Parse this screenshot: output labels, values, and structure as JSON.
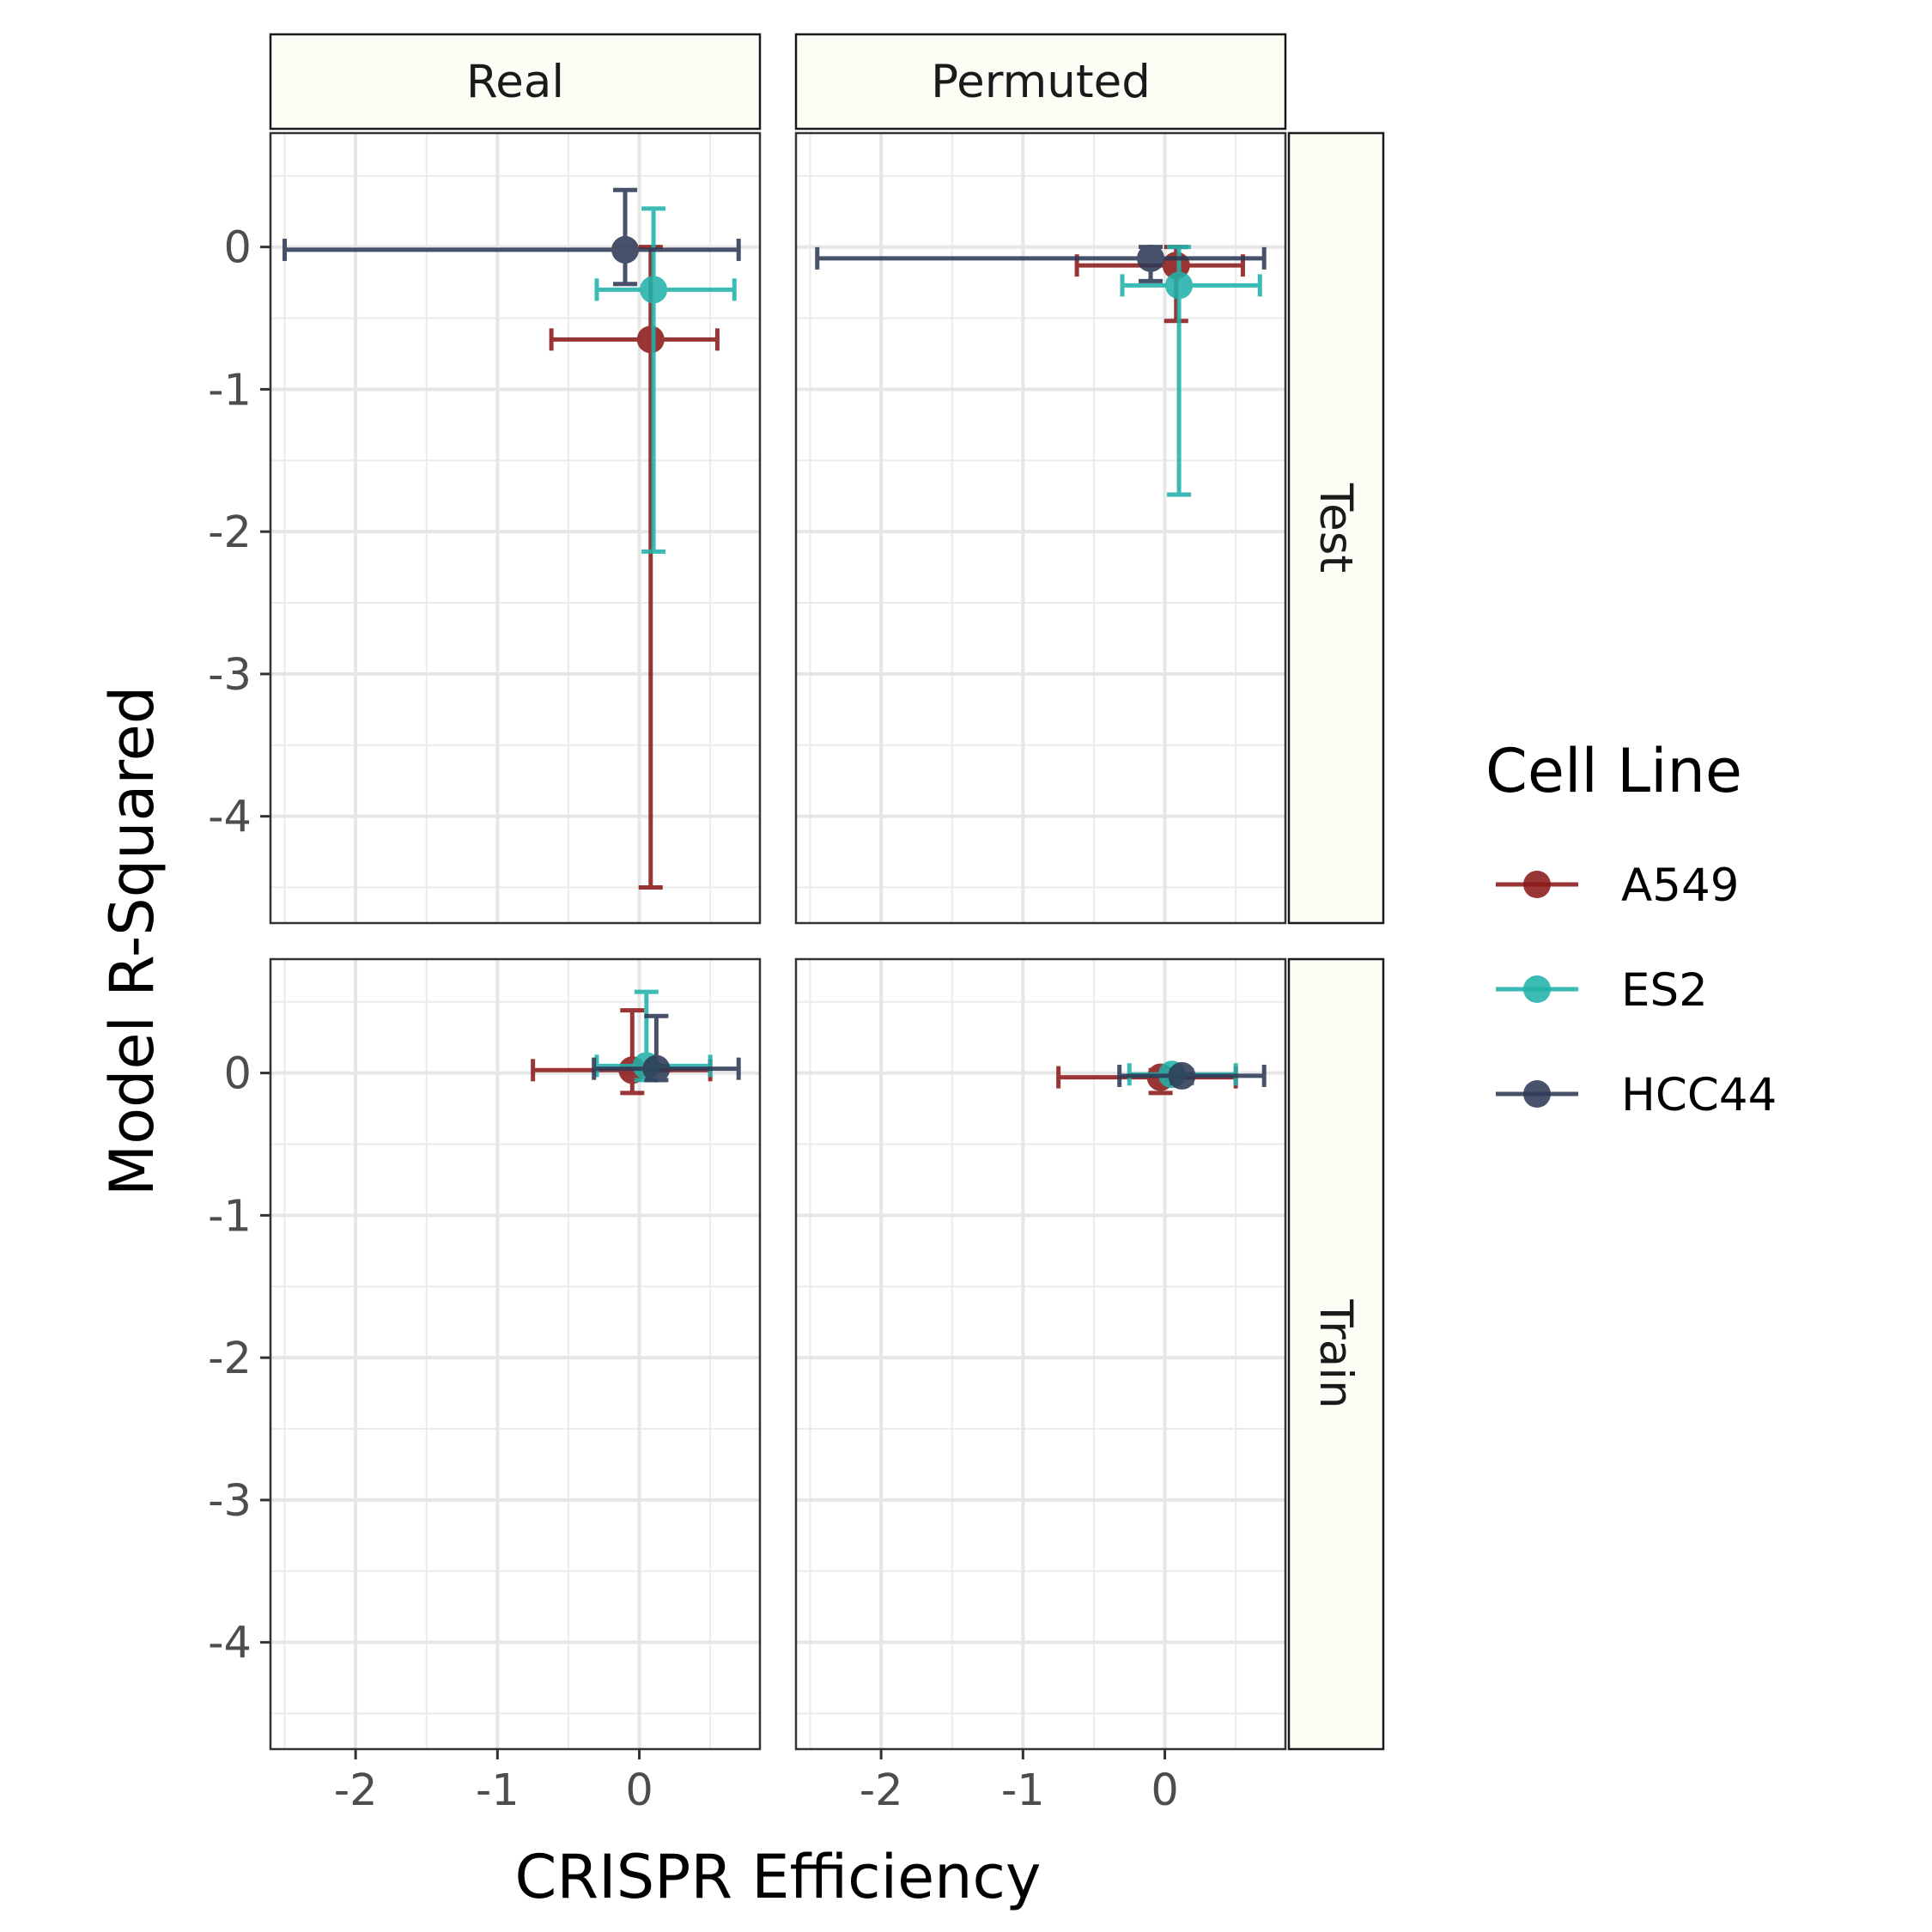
{
  "chart_data": {
    "type": "scatter",
    "xlabel": "CRISPR Efficiency",
    "ylabel": "Model R-Squared",
    "xlim": [
      -2.6,
      0.85
    ],
    "ylim": [
      -4.75,
      0.8
    ],
    "x_ticks": [
      -2,
      -1,
      0
    ],
    "x_tick_labels": [
      "-2",
      "-1",
      "0"
    ],
    "y_ticks": [
      0,
      -1,
      -2,
      -3,
      -4
    ],
    "y_tick_labels": [
      "0",
      "-1",
      "-2",
      "-3",
      "-4"
    ],
    "grid": true,
    "facet_columns": [
      "Real",
      "Permuted"
    ],
    "facet_rows": [
      "Test",
      "Train"
    ],
    "legend": {
      "title": "Cell Line",
      "placement": "right",
      "entries": [
        "A549",
        "ES2",
        "HCC44"
      ]
    },
    "colors": {
      "A549": "#8b1a1a",
      "ES2": "#20b2aa",
      "HCC44": "#2f3a56"
    },
    "series": [
      {
        "name": "A549",
        "color": "#8b1a1a",
        "points": [
          {
            "col": "Real",
            "row": "Test",
            "x": 0.08,
            "y": -0.65,
            "xmin": -0.62,
            "xmax": 0.55,
            "ymin": -4.5,
            "ymax": 0.0
          },
          {
            "col": "Permuted",
            "row": "Test",
            "x": 0.08,
            "y": -0.13,
            "xmin": -0.62,
            "xmax": 0.55,
            "ymin": -0.52,
            "ymax": 0.0
          },
          {
            "col": "Real",
            "row": "Train",
            "x": -0.05,
            "y": 0.02,
            "xmin": -0.75,
            "xmax": 0.5,
            "ymin": -0.14,
            "ymax": 0.44
          },
          {
            "col": "Permuted",
            "row": "Train",
            "x": -0.03,
            "y": -0.03,
            "xmin": -0.75,
            "xmax": 0.5,
            "ymin": -0.14,
            "ymax": 0.02
          }
        ]
      },
      {
        "name": "ES2",
        "color": "#20b2aa",
        "points": [
          {
            "col": "Real",
            "row": "Test",
            "x": 0.1,
            "y": -0.3,
            "xmin": -0.3,
            "xmax": 0.67,
            "ymin": -2.14,
            "ymax": 0.27
          },
          {
            "col": "Permuted",
            "row": "Test",
            "x": 0.1,
            "y": -0.27,
            "xmin": -0.3,
            "xmax": 0.67,
            "ymin": -1.74,
            "ymax": 0.0
          },
          {
            "col": "Real",
            "row": "Train",
            "x": 0.05,
            "y": 0.05,
            "xmin": -0.3,
            "xmax": 0.5,
            "ymin": -0.05,
            "ymax": 0.57
          },
          {
            "col": "Permuted",
            "row": "Train",
            "x": 0.05,
            "y": -0.01,
            "xmin": -0.25,
            "xmax": 0.5,
            "ymin": -0.05,
            "ymax": 0.02
          }
        ]
      },
      {
        "name": "HCC44",
        "color": "#2f3a56",
        "points": [
          {
            "col": "Real",
            "row": "Test",
            "x": -0.1,
            "y": -0.02,
            "xmin": -2.5,
            "xmax": 0.7,
            "ymin": -0.26,
            "ymax": 0.4
          },
          {
            "col": "Permuted",
            "row": "Test",
            "x": -0.1,
            "y": -0.08,
            "xmin": -2.45,
            "xmax": 0.7,
            "ymin": -0.24,
            "ymax": 0.0
          },
          {
            "col": "Real",
            "row": "Train",
            "x": 0.12,
            "y": 0.03,
            "xmin": -0.32,
            "xmax": 0.7,
            "ymin": -0.05,
            "ymax": 0.4
          },
          {
            "col": "Permuted",
            "row": "Train",
            "x": 0.12,
            "y": -0.02,
            "xmin": -0.32,
            "xmax": 0.7,
            "ymin": -0.07,
            "ymax": 0.02
          }
        ]
      }
    ]
  }
}
